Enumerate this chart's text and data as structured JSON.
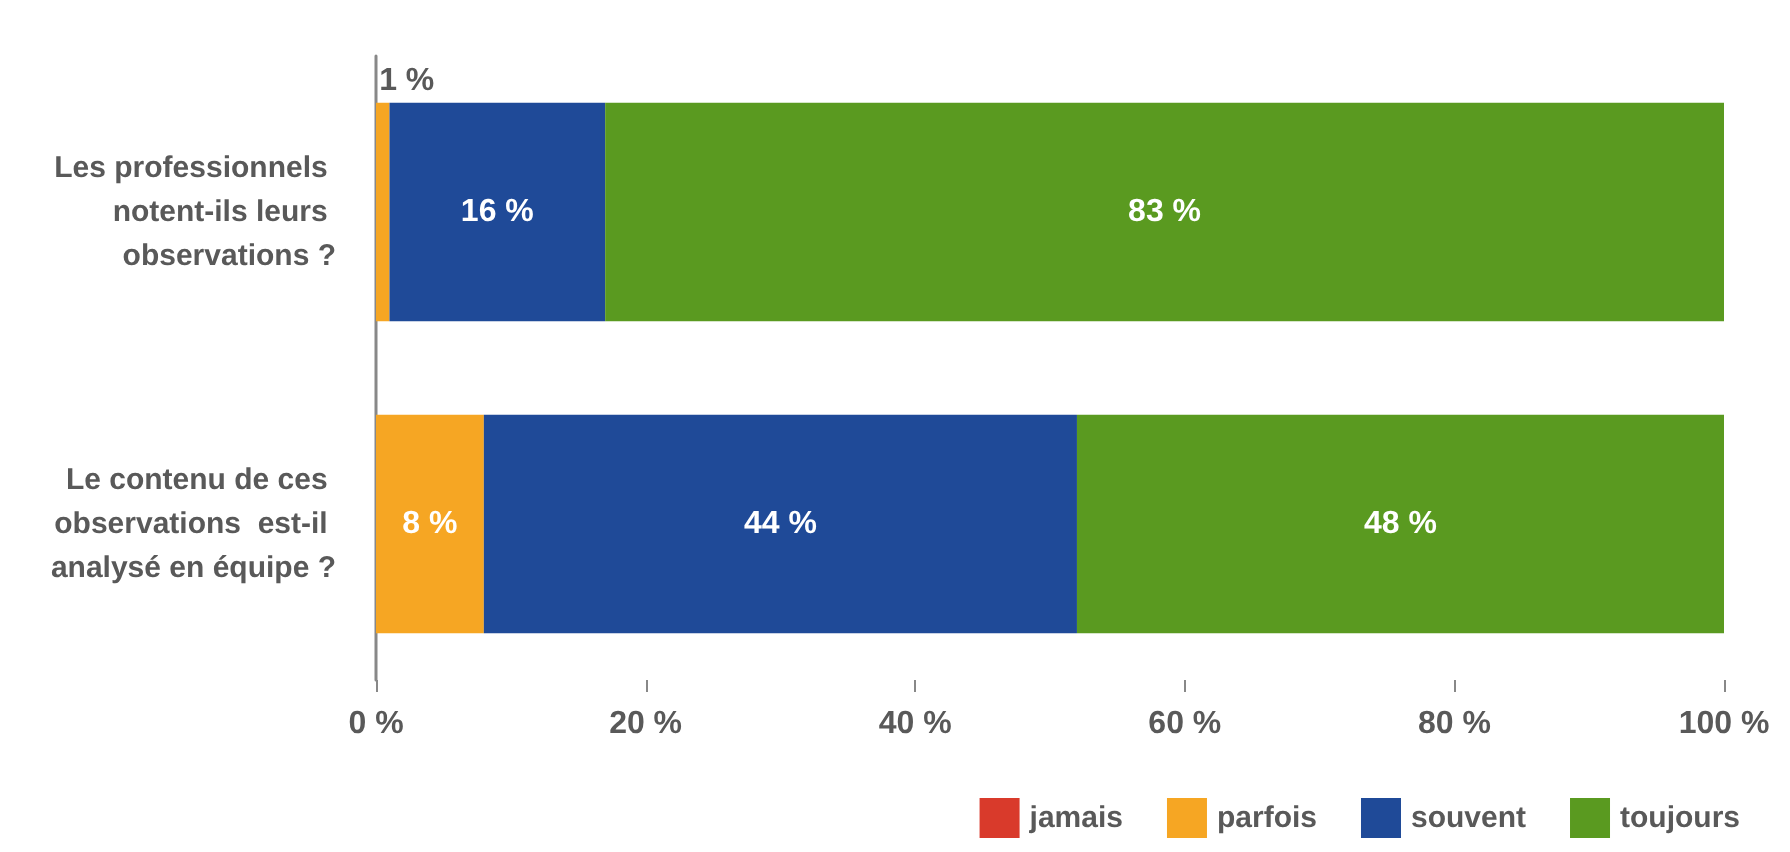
{
  "chart_data": {
    "type": "bar",
    "orientation": "horizontal",
    "stacked": true,
    "categories": [
      "Les professionnels notent-ils leurs observations ?",
      "Le contenu de ces observations  est-il analysé en équipe ?"
    ],
    "series": [
      {
        "name": "jamais",
        "color": "#d93a2b",
        "values": [
          0,
          0
        ]
      },
      {
        "name": "parfois",
        "color": "#f6a623",
        "values": [
          1,
          8
        ],
        "value_labels": [
          "1 %",
          "8 %"
        ]
      },
      {
        "name": "souvent",
        "color": "#1f4a98",
        "values": [
          16,
          44
        ],
        "value_labels": [
          "16 %",
          "44 %"
        ]
      },
      {
        "name": "toujours",
        "color": "#5a9a20",
        "values": [
          83,
          48
        ],
        "value_labels": [
          "83 %",
          "48 %"
        ]
      }
    ],
    "xlim": [
      0,
      100
    ],
    "xticks": [
      {
        "value": 0,
        "label": "0 %"
      },
      {
        "value": 20,
        "label": "20 %"
      },
      {
        "value": 40,
        "label": "40 %"
      },
      {
        "value": 60,
        "label": "60 %"
      },
      {
        "value": 80,
        "label": "80 %"
      },
      {
        "value": 100,
        "label": "100 %"
      }
    ],
    "grid": false,
    "legend": "bottom right"
  }
}
